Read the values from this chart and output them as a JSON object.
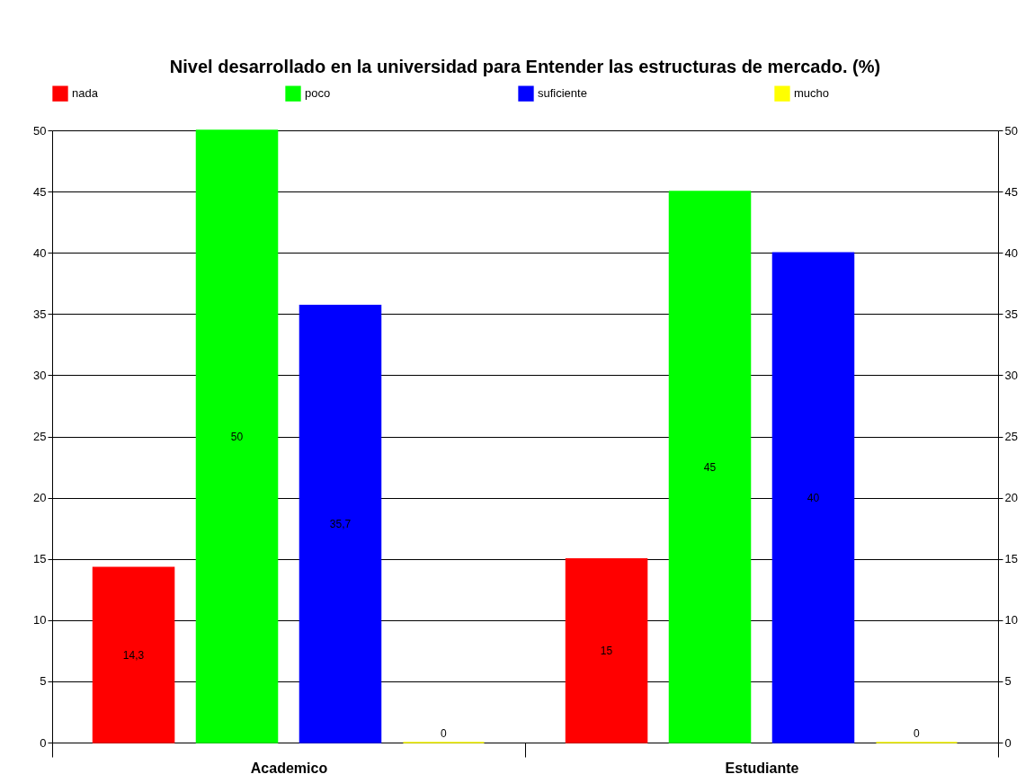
{
  "chart_data": {
    "type": "bar",
    "title": "Nivel desarrollado en la universidad para Entender las estructuras de mercado. (%)",
    "categories": [
      "Academico",
      "Estudiante"
    ],
    "series": [
      {
        "name": "nada",
        "color": "#ff0000",
        "values": [
          14.3,
          15
        ],
        "value_labels": [
          "14,3",
          "15"
        ]
      },
      {
        "name": "poco",
        "color": "#00ff00",
        "values": [
          50,
          45
        ],
        "value_labels": [
          "50",
          "45"
        ]
      },
      {
        "name": "suficiente",
        "color": "#0000ff",
        "values": [
          35.7,
          40
        ],
        "value_labels": [
          "35,7",
          "40"
        ]
      },
      {
        "name": "mucho",
        "color": "#ffff00",
        "values": [
          0,
          0
        ],
        "value_labels": [
          "0",
          "0"
        ]
      }
    ],
    "ylim": [
      0,
      50
    ],
    "yticks": [
      0,
      5,
      10,
      15,
      20,
      25,
      30,
      35,
      40,
      45,
      50
    ],
    "y2lim": [
      0,
      50
    ],
    "y2ticks": [
      0,
      5,
      10,
      15,
      20,
      25,
      30,
      35,
      40,
      45,
      50
    ],
    "grid": "y",
    "legend": "top"
  }
}
